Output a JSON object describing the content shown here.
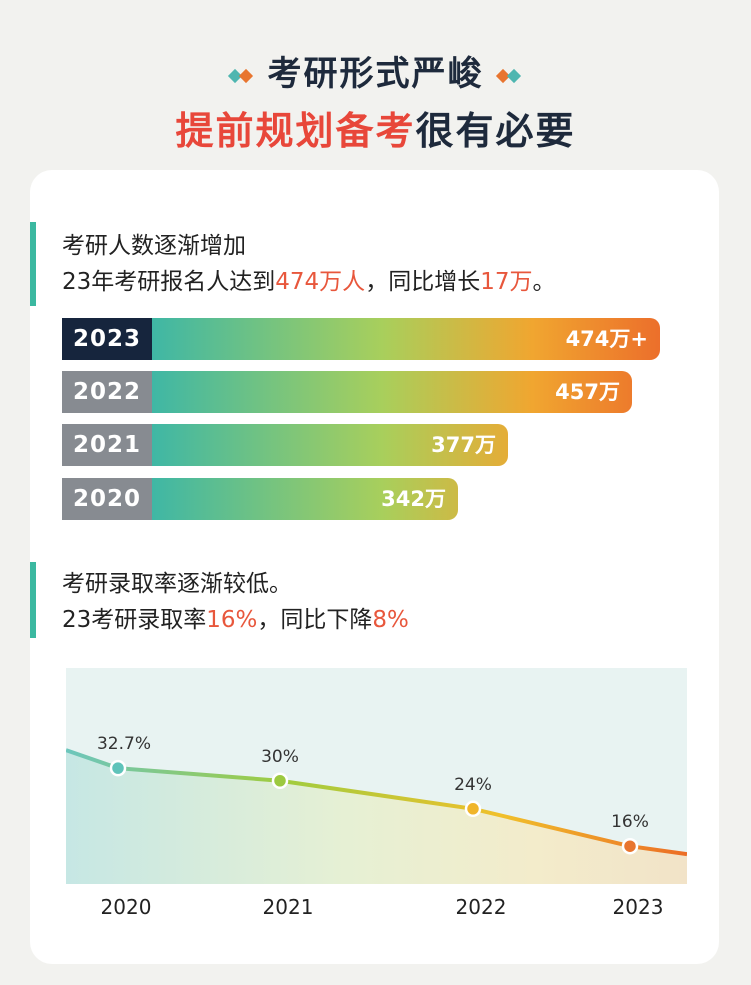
{
  "header": {
    "title_line1": "考研形式严峻",
    "title_line2_highlight": "提前规划备考",
    "title_line2_rest": "很有必要"
  },
  "section1": {
    "line1": "考研人数逐渐增加",
    "line2_prefix": "23年考研报名人达到",
    "line2_value": "474万人",
    "line2_mid": "，同比增长",
    "line2_value2": "17万",
    "line2_end": "。"
  },
  "section2": {
    "line1": "考研录取率逐渐较低。",
    "line2_prefix": "23考研录取率",
    "line2_value": "16%",
    "line2_mid": "，同比下降",
    "line2_value2": "8%"
  },
  "chart_data": [
    {
      "type": "bar",
      "orientation": "horizontal",
      "categories": [
        "2023",
        "2022",
        "2021",
        "2020"
      ],
      "values": [
        474,
        457,
        377,
        342
      ],
      "value_labels": [
        "474万+",
        "457万",
        "377万",
        "342万"
      ],
      "unit": "万",
      "colors": {
        "year_box_latest": "#16253d",
        "year_box_other": "#878b91",
        "gradient_start": "#3fb7a5",
        "gradient_mid": "#a8cf5c",
        "gradient_end": "#f0a630",
        "gradient_hot": "#ec6f2b"
      }
    },
    {
      "type": "line",
      "x": [
        "2020",
        "2021",
        "2022",
        "2023"
      ],
      "values": [
        32.7,
        30,
        24,
        16
      ],
      "value_labels": [
        "32.7%",
        "30%",
        "24%",
        "16%"
      ],
      "unit": "%",
      "point_colors": [
        "#5fc3ba",
        "#9cc93f",
        "#f0b52b",
        "#e8752f"
      ],
      "background": "#e7f3f2"
    }
  ]
}
